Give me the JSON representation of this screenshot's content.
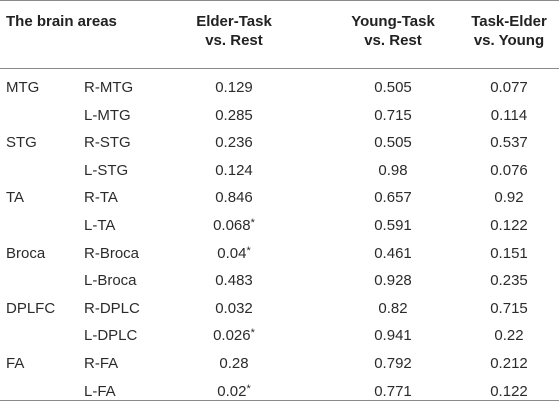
{
  "header": {
    "area_label": "The brain areas",
    "col1_line1": "Elder-Task",
    "col1_line2": "vs. Rest",
    "col2_line1": "Young-Task",
    "col2_line2": "vs. Rest",
    "col3_line1": "Task-Elder",
    "col3_line2": "vs. Young"
  },
  "rows": [
    {
      "group": "MTG",
      "sub": "R-MTG",
      "v1": "0.129",
      "v1_star": "",
      "v2": "0.505",
      "v3": "0.077"
    },
    {
      "group": "",
      "sub": "L-MTG",
      "v1": "0.285",
      "v1_star": "",
      "v2": "0.715",
      "v3": "0.114"
    },
    {
      "group": "STG",
      "sub": "R-STG",
      "v1": "0.236",
      "v1_star": "",
      "v2": "0.505",
      "v3": "0.537"
    },
    {
      "group": "",
      "sub": "L-STG",
      "v1": "0.124",
      "v1_star": "",
      "v2": "0.98",
      "v3": "0.076"
    },
    {
      "group": "TA",
      "sub": "R-TA",
      "v1": "0.846",
      "v1_star": "",
      "v2": "0.657",
      "v3": "0.92"
    },
    {
      "group": "",
      "sub": "L-TA",
      "v1": "0.068",
      "v1_star": "*",
      "v2": "0.591",
      "v3": "0.122"
    },
    {
      "group": "Broca",
      "sub": "R-Broca",
      "v1": "0.04",
      "v1_star": "*",
      "v2": "0.461",
      "v3": "0.151"
    },
    {
      "group": "",
      "sub": "L-Broca",
      "v1": "0.483",
      "v1_star": "",
      "v2": "0.928",
      "v3": "0.235"
    },
    {
      "group": "DPLFC",
      "sub": "R-DPLC",
      "v1": "0.032",
      "v1_star": "",
      "v2": "0.82",
      "v3": "0.715"
    },
    {
      "group": "",
      "sub": "L-DPLC",
      "v1": "0.026",
      "v1_star": "*",
      "v2": "0.941",
      "v3": "0.22"
    },
    {
      "group": "FA",
      "sub": "R-FA",
      "v1": "0.28",
      "v1_star": "",
      "v2": "0.792",
      "v3": "0.212"
    },
    {
      "group": "",
      "sub": "L-FA",
      "v1": "0.02",
      "v1_star": "*",
      "v2": "0.771",
      "v3": "0.122"
    }
  ]
}
